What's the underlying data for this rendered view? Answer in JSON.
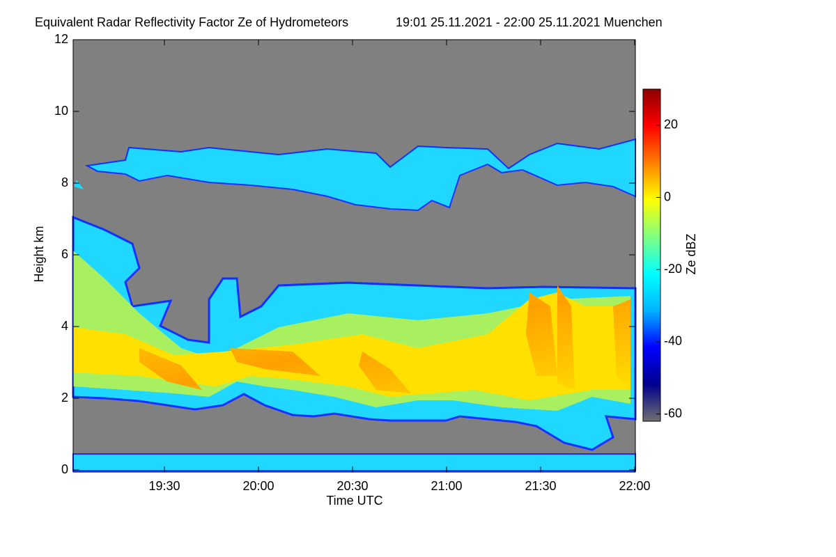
{
  "chart_data": {
    "type": "heatmap",
    "title": "Equivalent Radar Reflectivity Factor Ze of Hydrometeors",
    "subtitle": "19:01 25.11.2021 - 22:00 25.11.2021 Muenchen",
    "x_label": "Time UTC",
    "y_label": "Height km",
    "xlim": [
      "19:01",
      "22:00"
    ],
    "xticks": [
      "19:30",
      "20:00",
      "20:30",
      "21:00",
      "21:30",
      "22:00"
    ],
    "ylim": [
      0,
      12
    ],
    "yticks": [
      0,
      2,
      4,
      6,
      8,
      10,
      12
    ],
    "colorbar_label": "Ze dBZ",
    "clim": [
      -62,
      30
    ],
    "cticks": [
      -60,
      -40,
      -20,
      0,
      20
    ],
    "colormap": [
      "#707070",
      "#00008c",
      "#0000ff",
      "#00b4ff",
      "#00ffff",
      "#80ff80",
      "#ffff00",
      "#ff8000",
      "#ff0000",
      "#8c0000"
    ]
  }
}
